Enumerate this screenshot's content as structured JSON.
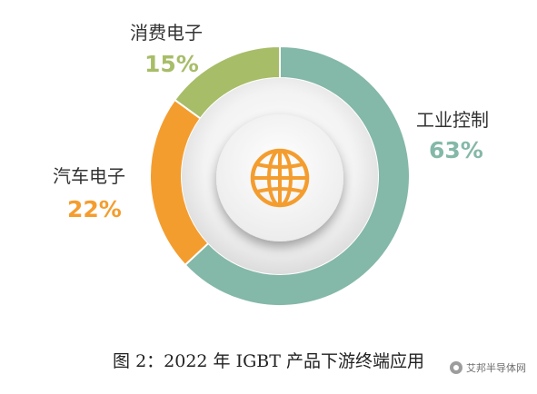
{
  "chart_data": {
    "type": "pie",
    "title": "",
    "segments": [
      {
        "label": "工业控制",
        "value": 63,
        "value_text": "63%",
        "color": "#84b8a8"
      },
      {
        "label": "汽车电子",
        "value": 22,
        "value_text": "22%",
        "color": "#f49d2f"
      },
      {
        "label": "消费电子",
        "value": 15,
        "value_text": "15%",
        "color": "#a7bd68"
      }
    ],
    "center_icon": "globe-icon",
    "center_icon_color": "#f49d2f",
    "legend": "none"
  },
  "caption": "图 2：2022 年 IGBT 产品下游终端应用",
  "watermark": "艾邦半导体网"
}
